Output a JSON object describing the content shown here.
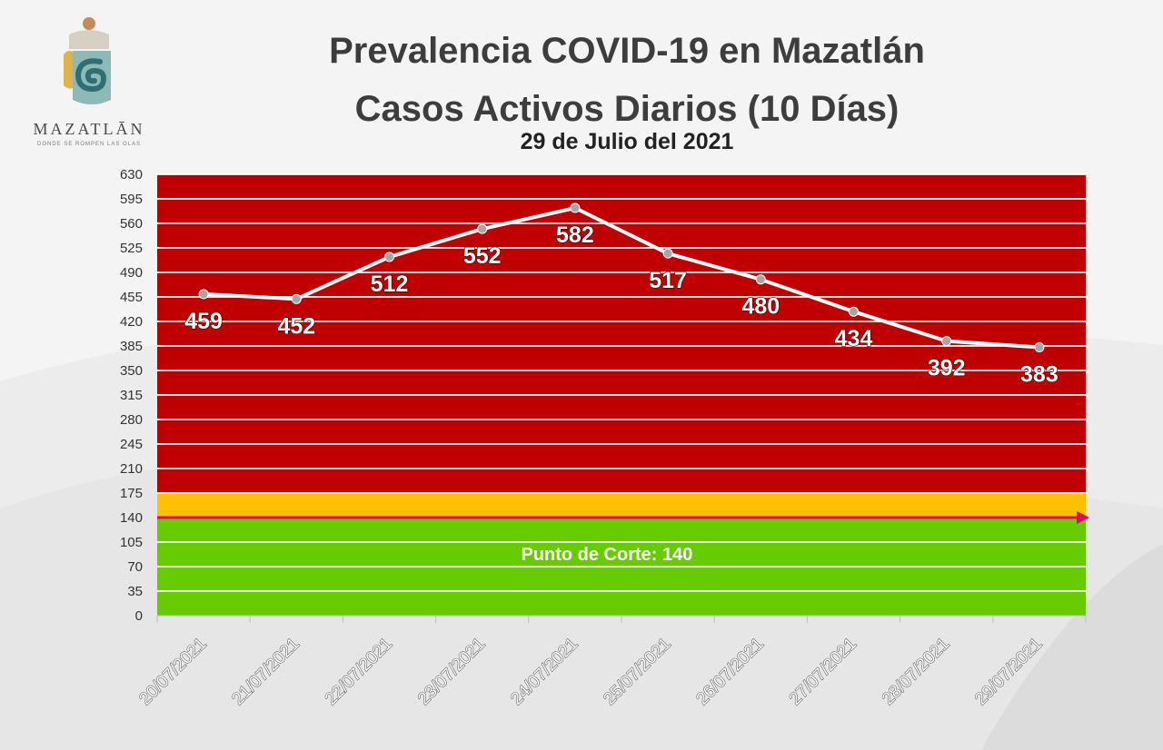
{
  "logo": {
    "name": "MAZATLĀN",
    "tagline": "DONDE SE ROMPEN LAS OLAS",
    "icon": "mazatlan-wave-emblem",
    "colors": {
      "top": "#c98a56",
      "left": "#e0b24a",
      "body": "#8fb9b6",
      "wave": "#2e6f74"
    }
  },
  "header": {
    "title": "Prevalencia COVID-19 en Mazatlán",
    "subtitle": "Casos Activos Diarios (10 Días)",
    "date": "29 de Julio del 2021"
  },
  "chart_data": {
    "type": "line",
    "title": "Casos Activos Diarios (10 Días)",
    "categories": [
      "20/07/2021",
      "21/07/2021",
      "22/07/2021",
      "23/07/2021",
      "24/07/2021",
      "25/07/2021",
      "26/07/2021",
      "27/07/2021",
      "28/07/2021",
      "29/07/2021"
    ],
    "values": [
      459,
      452,
      512,
      552,
      582,
      517,
      480,
      434,
      392,
      383
    ],
    "ylim": [
      0,
      630
    ],
    "yticks": [
      0,
      35,
      70,
      105,
      140,
      175,
      210,
      245,
      280,
      315,
      350,
      385,
      420,
      455,
      490,
      525,
      560,
      595,
      630
    ],
    "grid": true,
    "bands": [
      {
        "from": 0,
        "to": 140,
        "color": "#66cc00"
      },
      {
        "from": 140,
        "to": 175,
        "color": "#ffc000"
      },
      {
        "from": 175,
        "to": 630,
        "color": "#c00000"
      }
    ],
    "threshold": {
      "value": 140,
      "label": "Punto de Corte: 140",
      "color": "#e8006c"
    },
    "line_color": "#ffffff",
    "marker_color": "#a6a6a6",
    "label_color": "#ffffff"
  }
}
